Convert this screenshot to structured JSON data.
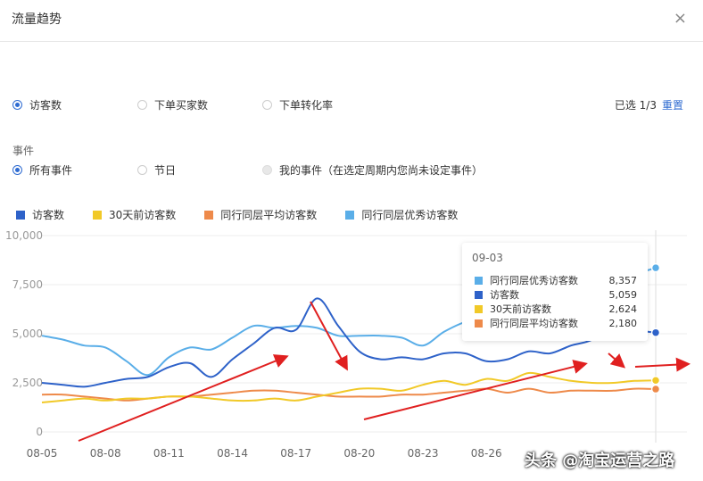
{
  "dialog": {
    "title": "流量趋势",
    "close_label": "×"
  },
  "metrics": {
    "options": [
      {
        "label": "访客数",
        "selected": true
      },
      {
        "label": "下单买家数",
        "selected": false
      },
      {
        "label": "下单转化率",
        "selected": false
      }
    ],
    "selected_count": "已选 1/3",
    "reset_label": "重置"
  },
  "events": {
    "section_label": "事件",
    "options": [
      {
        "label": "所有事件",
        "selected": true
      },
      {
        "label": "节日",
        "selected": false
      },
      {
        "label": "我的事件（在选定周期内您尚未设定事件）",
        "selected": false
      }
    ]
  },
  "tooltip": {
    "date": "09-03",
    "rows": [
      {
        "name": "同行同层优秀访客数",
        "value": "8,357",
        "color": "#5aaee8"
      },
      {
        "name": "访客数",
        "value": "5,059",
        "color": "#2e62c9"
      },
      {
        "name": "30天前访客数",
        "value": "2,624",
        "color": "#f1c928"
      },
      {
        "name": "同行同层平均访客数",
        "value": "2,180",
        "color": "#ee8a4a"
      }
    ]
  },
  "watermark": "头条 @淘宝运营之路",
  "chart_data": {
    "type": "line",
    "x": [
      "08-05",
      "08-06",
      "08-07",
      "08-08",
      "08-09",
      "08-10",
      "08-11",
      "08-12",
      "08-13",
      "08-14",
      "08-15",
      "08-16",
      "08-17",
      "08-18",
      "08-19",
      "08-20",
      "08-21",
      "08-22",
      "08-23",
      "08-24",
      "08-25",
      "08-26",
      "08-27",
      "08-28",
      "08-29",
      "08-30",
      "08-31",
      "09-01",
      "09-02",
      "09-03"
    ],
    "x_ticks": [
      "08-05",
      "08-08",
      "08-11",
      "08-14",
      "08-17",
      "08-20",
      "08-23",
      "08-26"
    ],
    "y_ticks": [
      "0",
      "2,500",
      "5,000",
      "7,500",
      "10,000"
    ],
    "ylim": [
      0,
      10000
    ],
    "series": [
      {
        "name": "访客数",
        "color": "#2e62c9",
        "values": [
          2500,
          2400,
          2300,
          2500,
          2700,
          2800,
          3300,
          3500,
          2800,
          3700,
          4500,
          5300,
          5200,
          6800,
          5400,
          4100,
          3700,
          3800,
          3700,
          4000,
          4000,
          3600,
          3700,
          4100,
          4000,
          4400,
          4700,
          5500,
          5200,
          5059
        ]
      },
      {
        "name": "30天前访客数",
        "color": "#f1c928",
        "values": [
          1500,
          1600,
          1700,
          1600,
          1700,
          1700,
          1800,
          1800,
          1700,
          1600,
          1600,
          1700,
          1600,
          1800,
          2000,
          2200,
          2200,
          2100,
          2400,
          2600,
          2400,
          2700,
          2600,
          3000,
          2800,
          2600,
          2500,
          2500,
          2600,
          2624
        ]
      },
      {
        "name": "同行同层平均访客数",
        "color": "#ee8a4a",
        "values": [
          1900,
          1900,
          1800,
          1700,
          1600,
          1700,
          1800,
          1800,
          1900,
          2000,
          2100,
          2100,
          2000,
          1900,
          1800,
          1800,
          1800,
          1900,
          1900,
          2000,
          2100,
          2200,
          2000,
          2200,
          2000,
          2100,
          2100,
          2100,
          2200,
          2180
        ]
      },
      {
        "name": "同行同层优秀访客数",
        "color": "#5aaee8",
        "values": [
          4900,
          4700,
          4400,
          4300,
          3600,
          2900,
          3800,
          4300,
          4200,
          4800,
          5400,
          5300,
          5400,
          5300,
          4900,
          4900,
          4900,
          4800,
          4400,
          5100,
          5600,
          5800,
          5900,
          6200,
          6500,
          6600,
          7000,
          7400,
          8000,
          8357
        ]
      }
    ]
  },
  "legend_colors": {
    "accent": "#2e62c9"
  }
}
